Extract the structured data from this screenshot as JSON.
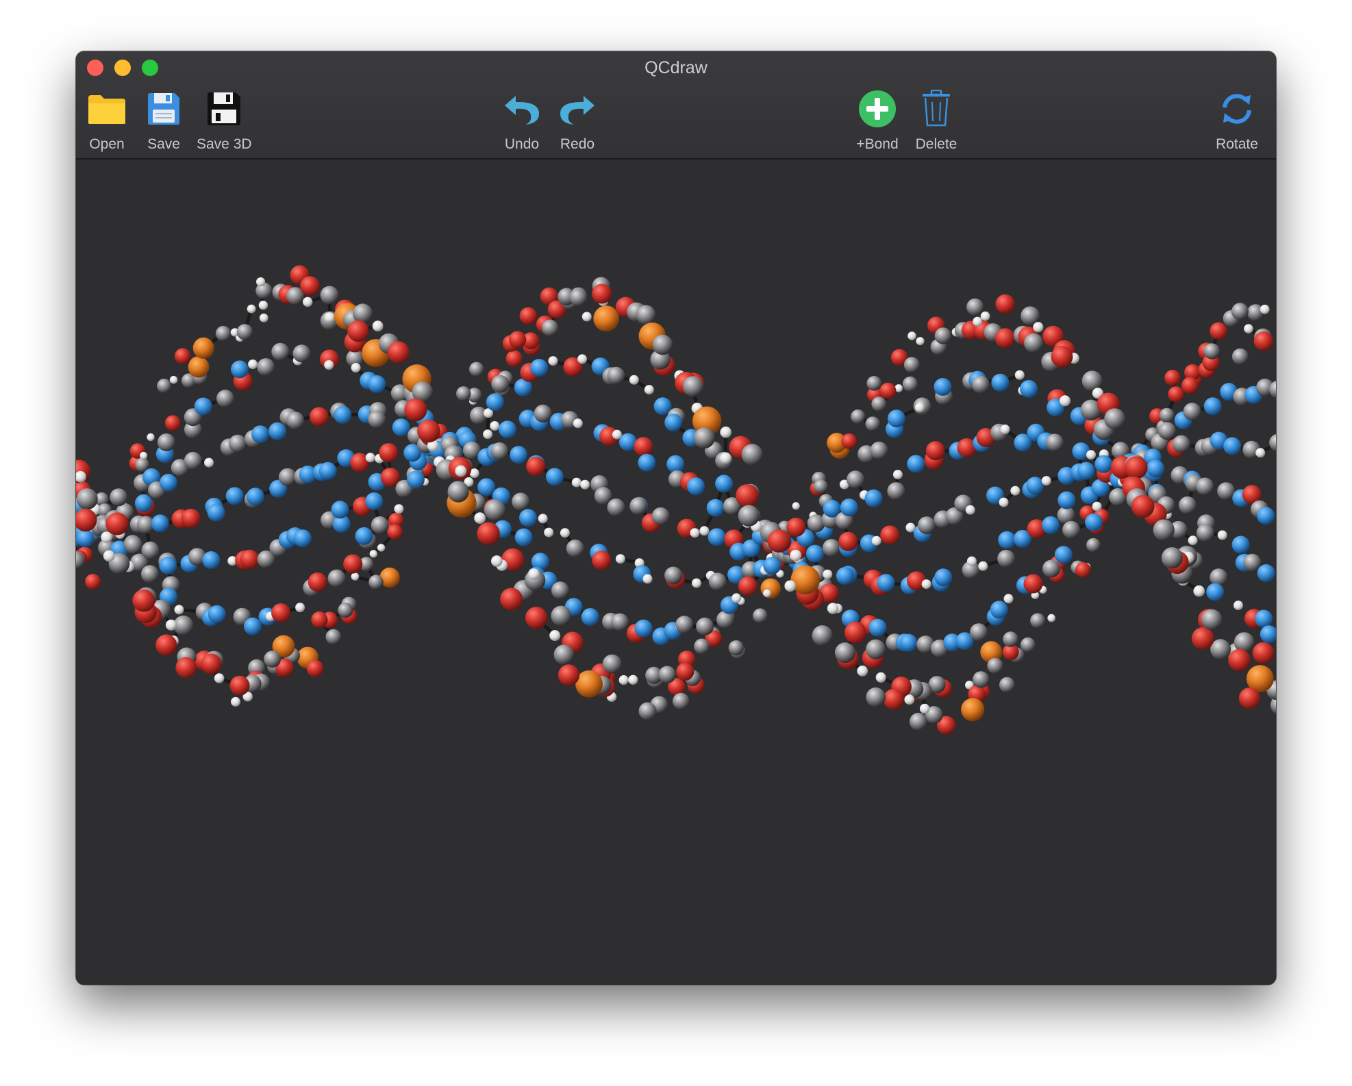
{
  "window": {
    "title": "QCdraw"
  },
  "toolbar": {
    "open_label": "Open",
    "save_label": "Save",
    "save3d_label": "Save 3D",
    "undo_label": "Undo",
    "redo_label": "Redo",
    "bond_label": "+Bond",
    "delete_label": "Delete",
    "rotate_label": "Rotate"
  },
  "icons": {
    "open": "folder-icon",
    "save": "floppy-disk-icon",
    "save3d": "floppy-disk-dark-icon",
    "undo": "undo-arrow-icon",
    "redo": "redo-arrow-icon",
    "bond": "plus-circle-icon",
    "delete": "trash-icon",
    "rotate": "rotate-arrows-icon"
  },
  "colors": {
    "window_bg": "#2d2d30",
    "titlebar": "#353538",
    "oxygen": "#d0342c",
    "phosphorus": "#e07a22",
    "nitrogen": "#3a92dc",
    "carbon": "#8c8c8f",
    "hydrogen": "#e6e6e6",
    "accent_green": "#3cc063",
    "accent_blue": "#3a92dc"
  },
  "viewport": {
    "content": "3D DNA double helix ball-and-stick molecule"
  }
}
